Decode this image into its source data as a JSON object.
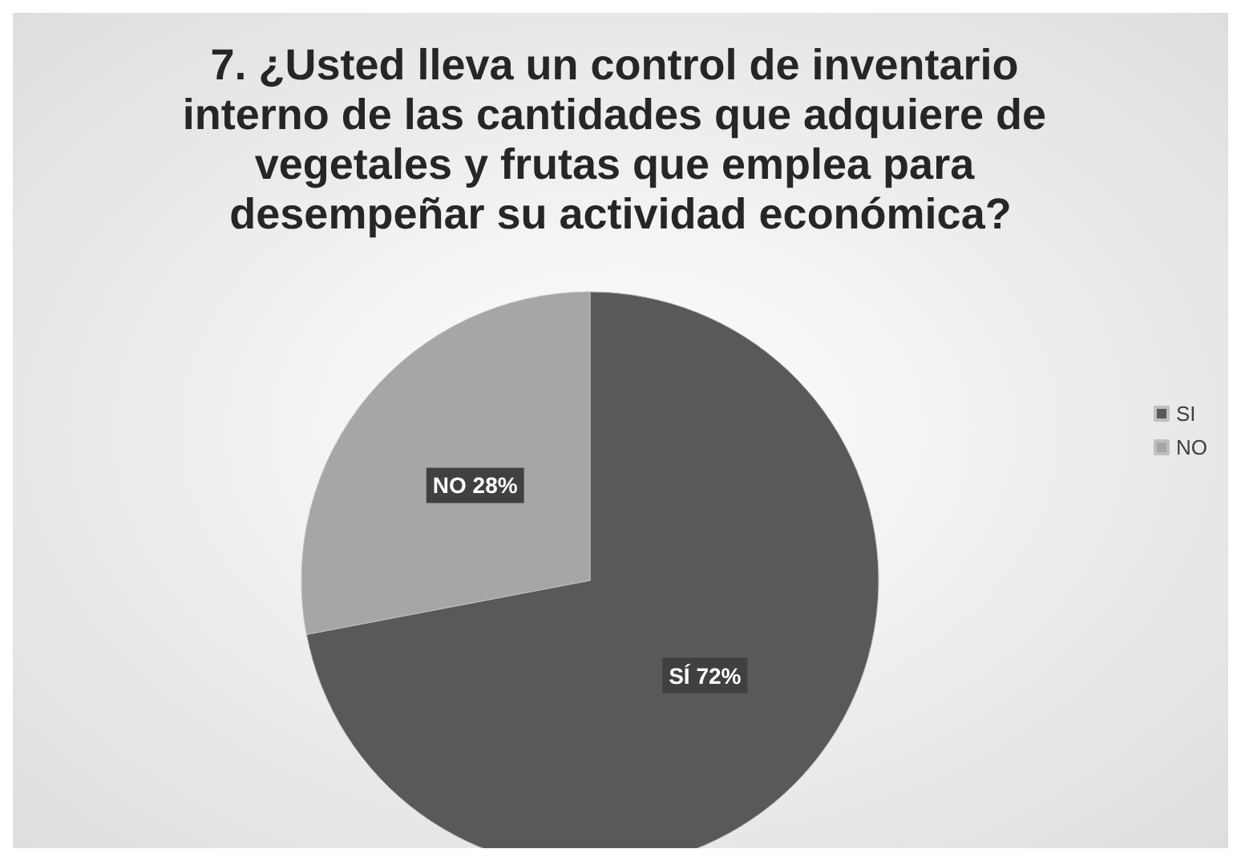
{
  "chart_data": {
    "type": "pie",
    "title": "7. ¿Usted lleva un control de inventario interno de las cantidades que adquiere de vegetales y frutas que emplea para desempeñar su actividad económica?",
    "categories": [
      "SI",
      "NO"
    ],
    "values": [
      72,
      28
    ],
    "colors": [
      "#595959",
      "#a6a6a6"
    ],
    "value_labels": [
      "SÍ 72%",
      "NO 28%"
    ],
    "legend": "right"
  }
}
